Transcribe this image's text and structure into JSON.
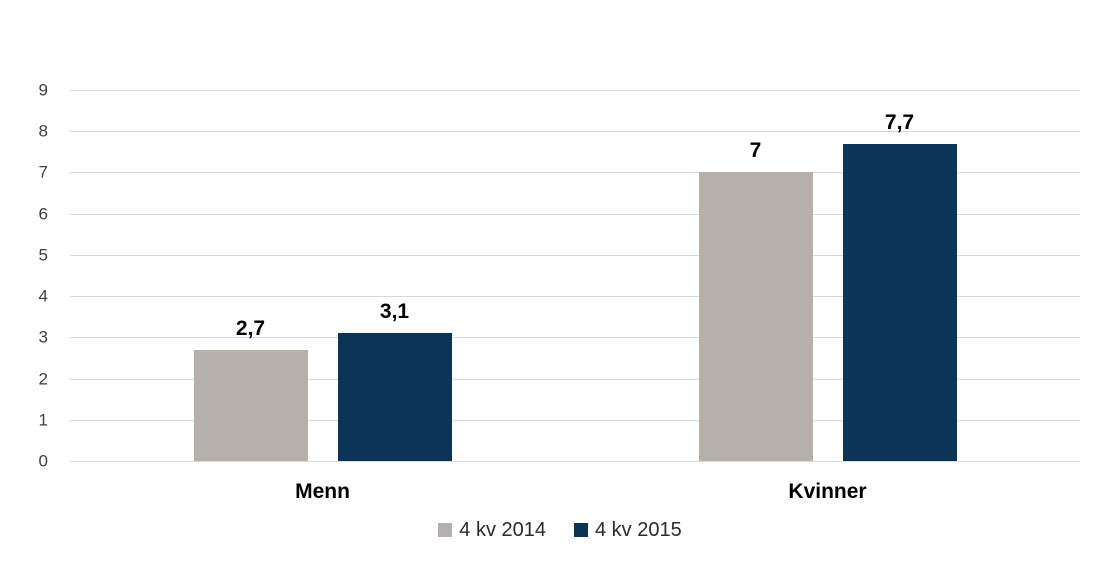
{
  "chart_data": {
    "type": "bar",
    "categories": [
      "Menn",
      "Kvinner"
    ],
    "series": [
      {
        "name": "4 kv 2014",
        "color": "#b5b0a9",
        "values": [
          2.7,
          7
        ]
      },
      {
        "name": "4 kv 2015",
        "color": "#0b3457",
        "values": [
          3.1,
          7.7
        ]
      }
    ],
    "value_labels": [
      [
        "2,7",
        "7"
      ],
      [
        "3,1",
        "7,7"
      ]
    ],
    "title": "",
    "xlabel": "",
    "ylabel": "",
    "ylim": [
      0,
      9
    ],
    "ytick_step": 1,
    "yticks": [
      "0",
      "1",
      "2",
      "3",
      "4",
      "5",
      "6",
      "7",
      "8",
      "9"
    ],
    "grid": true,
    "legend_position": "bottom"
  },
  "colors": {
    "background": "#ffffff",
    "gridline": "#d9d9d9",
    "axis_text": "#3f3f3f",
    "value_label_text": "#000000"
  }
}
